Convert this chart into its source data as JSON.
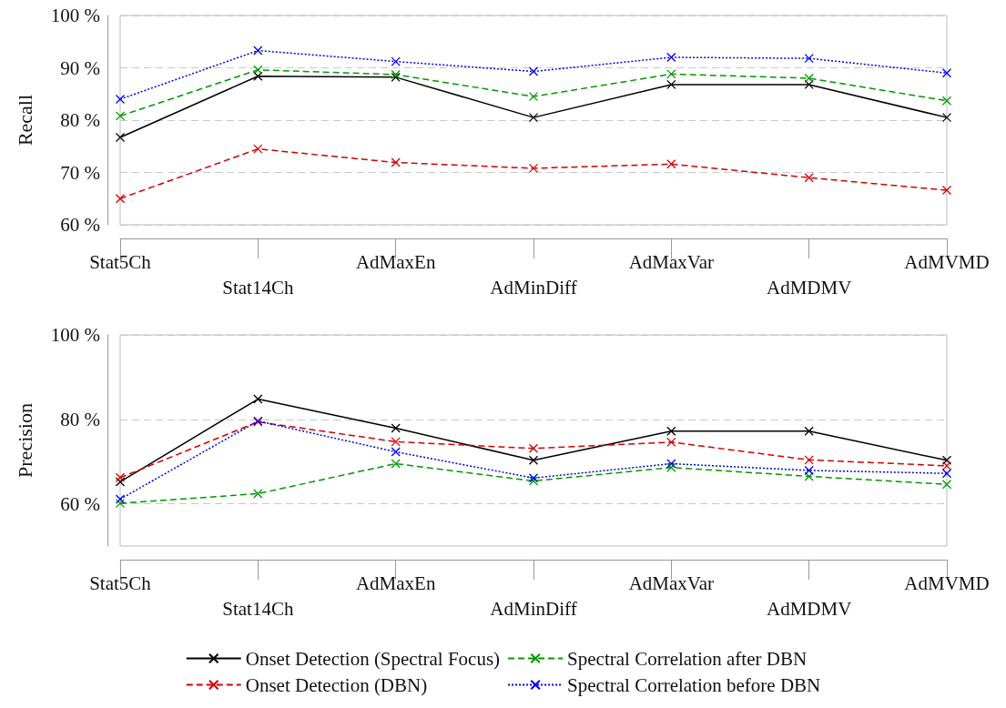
{
  "chart_data": [
    {
      "type": "line",
      "ylabel": "Recall",
      "categories": [
        "Stat5Ch",
        "Stat14Ch",
        "AdMaxEn",
        "AdMinDiff",
        "AdMaxVar",
        "AdMDMV",
        "AdMVMD"
      ],
      "ylim": [
        60,
        100
      ],
      "yticks": [
        {
          "value": 60,
          "label": "60 %"
        },
        {
          "value": 70,
          "label": "70 %"
        },
        {
          "value": 80,
          "label": "80 %"
        },
        {
          "value": 90,
          "label": "90 %"
        },
        {
          "value": 100,
          "label": "100 %"
        }
      ],
      "grid": "y",
      "marker": "cross",
      "series": [
        {
          "color": "#000000",
          "line_style": "solid",
          "values": [
            76.7,
            88.4,
            88.2,
            80.5,
            86.8,
            86.8,
            80.5
          ]
        },
        {
          "color": "#d40000",
          "line_style": "dashed",
          "values": [
            65.0,
            74.5,
            71.9,
            70.8,
            71.6,
            69.0,
            66.6
          ]
        },
        {
          "color": "#009900",
          "line_style": "dashed",
          "values": [
            80.8,
            89.6,
            88.7,
            84.5,
            88.8,
            88.0,
            83.7
          ]
        },
        {
          "color": "#0000ee",
          "line_style": "dotted",
          "values": [
            84.0,
            93.3,
            91.2,
            89.3,
            92.0,
            91.8,
            89.0
          ]
        }
      ]
    },
    {
      "type": "line",
      "ylabel": "Precision",
      "categories": [
        "Stat5Ch",
        "Stat14Ch",
        "AdMaxEn",
        "AdMinDiff",
        "AdMaxVar",
        "AdMDMV",
        "AdMVMD"
      ],
      "ylim": [
        50,
        100
      ],
      "yticks": [
        {
          "value": 60,
          "label": "60 %"
        },
        {
          "value": 80,
          "label": "80 %"
        },
        {
          "value": 100,
          "label": "100 %"
        }
      ],
      "grid": "y",
      "marker": "cross",
      "legend": "bottom",
      "series": [
        {
          "name": "Onset Detection (Spectral Focus)",
          "color": "#000000",
          "line_style": "solid",
          "values": [
            65.2,
            84.8,
            77.9,
            70.3,
            77.2,
            77.2,
            70.3
          ]
        },
        {
          "name": "Onset Detection (DBN)",
          "color": "#d40000",
          "line_style": "dashed",
          "values": [
            66.2,
            79.4,
            74.7,
            73.1,
            74.6,
            70.4,
            69.0
          ]
        },
        {
          "name": "Spectral Correlation after DBN",
          "color": "#009900",
          "line_style": "dashed",
          "values": [
            60.1,
            62.4,
            69.5,
            65.4,
            68.6,
            66.5,
            64.6
          ]
        },
        {
          "name": "Spectral Correlation before DBN",
          "color": "#0000ee",
          "line_style": "dotted",
          "values": [
            61.1,
            79.6,
            72.3,
            66.1,
            69.5,
            67.9,
            67.2
          ]
        }
      ]
    }
  ]
}
